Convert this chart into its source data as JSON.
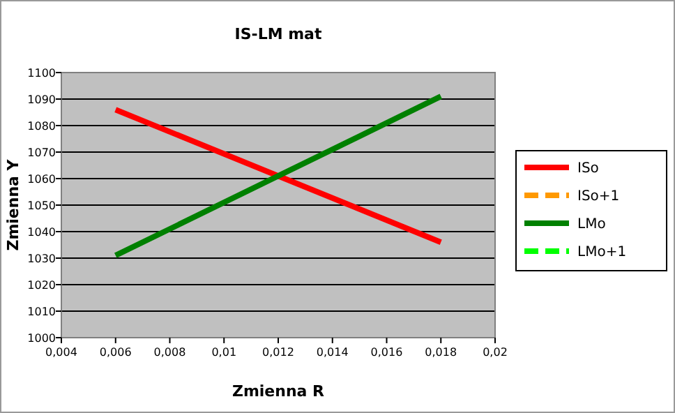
{
  "chart_data": {
    "type": "line",
    "title": "IS-LM mat",
    "xlabel": "Zmienna R",
    "ylabel": "Zmienna Y",
    "xlim": [
      0.004,
      0.02
    ],
    "xticks": [
      {
        "value": 0.004,
        "label": "0,004"
      },
      {
        "value": 0.006,
        "label": "0,006"
      },
      {
        "value": 0.008,
        "label": "0,008"
      },
      {
        "value": 0.01,
        "label": "0,01"
      },
      {
        "value": 0.012,
        "label": "0,012"
      },
      {
        "value": 0.014,
        "label": "0,014"
      },
      {
        "value": 0.016,
        "label": "0,016"
      },
      {
        "value": 0.018,
        "label": "0,018"
      },
      {
        "value": 0.02,
        "label": "0,02"
      }
    ],
    "ylim": [
      1000,
      1100
    ],
    "yticks": [
      1000,
      1010,
      1020,
      1030,
      1040,
      1050,
      1060,
      1070,
      1080,
      1090,
      1100
    ],
    "grid": "y",
    "legend": "right",
    "marker": "none",
    "series": [
      {
        "name": "ISo",
        "color": "#ff0000",
        "line_style": "solid",
        "x": [
          0.006,
          0.012,
          0.018
        ],
        "values": [
          1086,
          1061,
          1036
        ]
      },
      {
        "name": "ISo+1",
        "color": "#ff9900",
        "line_style": "dashed",
        "values": [
          null,
          null,
          null
        ]
      },
      {
        "name": "LMo",
        "color": "#008000",
        "line_style": "solid",
        "x": [
          0.006,
          0.012,
          0.018
        ],
        "values": [
          1031,
          1061,
          1091
        ]
      },
      {
        "name": "LMo+1",
        "color": "#00ff00",
        "line_style": "dashed",
        "values": [
          null,
          null,
          null
        ]
      }
    ]
  }
}
